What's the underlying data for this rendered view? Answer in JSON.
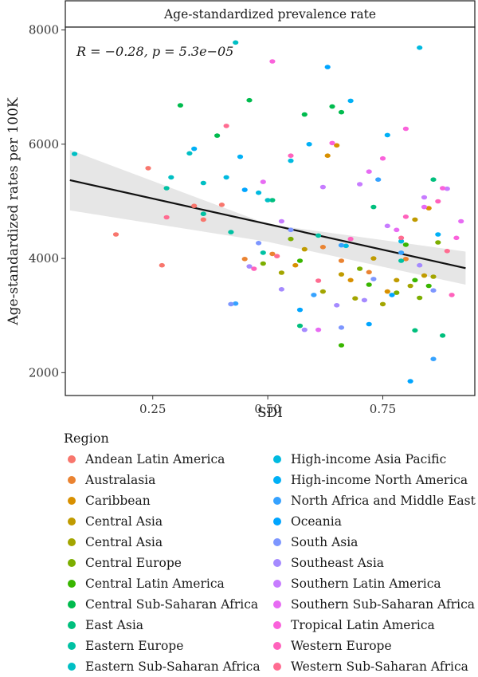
{
  "chart_data": {
    "type": "scatter",
    "strip_title": "Age-standardized prevalence rate",
    "annotation": "R = −0.28, p = 5.3e−05",
    "xlabel": "SDI",
    "ylabel": "Age-standardized rates per 100K",
    "xlim": [
      0.06,
      0.95
    ],
    "ylim": [
      1600,
      8050
    ],
    "xticks": [
      0.25,
      0.5,
      0.75
    ],
    "xtick_labels": [
      "0.25",
      "0.50",
      "0.75"
    ],
    "yticks": [
      2000,
      4000,
      6000,
      8000
    ],
    "ytick_labels": [
      "2000",
      "4000",
      "6000",
      "8000"
    ],
    "grid": false,
    "fit_line": {
      "x": [
        0.07,
        0.93
      ],
      "y": [
        5370,
        3830
      ]
    },
    "confidence_band": {
      "x": [
        0.07,
        0.5,
        0.93
      ],
      "upper": [
        5900,
        4600,
        4120
      ],
      "lower": [
        4840,
        4290,
        3540
      ]
    },
    "legend": {
      "title": "Region",
      "placement": "bottom"
    },
    "series": [
      {
        "name": "Andean Latin America",
        "color": "#F8766D",
        "points": [
          [
            0.17,
            4420
          ],
          [
            0.24,
            5580
          ],
          [
            0.27,
            3880
          ],
          [
            0.34,
            4920
          ],
          [
            0.36,
            4680
          ],
          [
            0.4,
            4940
          ]
        ]
      },
      {
        "name": "Australasia",
        "color": "#EA8331",
        "points": [
          [
            0.45,
            3990
          ],
          [
            0.51,
            4080
          ],
          [
            0.62,
            4200
          ],
          [
            0.66,
            3960
          ],
          [
            0.72,
            3760
          ],
          [
            0.8,
            3990
          ]
        ]
      },
      {
        "name": "Caribbean",
        "color": "#D89000",
        "points": [
          [
            0.56,
            3880
          ],
          [
            0.63,
            5800
          ],
          [
            0.65,
            5980
          ],
          [
            0.68,
            3620
          ],
          [
            0.76,
            3420
          ],
          [
            0.85,
            4880
          ]
        ]
      },
      {
        "name": "Central Asia",
        "color": "#C09B00",
        "points": [
          [
            0.58,
            4160
          ],
          [
            0.66,
            3720
          ],
          [
            0.73,
            4000
          ],
          [
            0.78,
            3620
          ],
          [
            0.82,
            4680
          ],
          [
            0.84,
            3700
          ]
        ]
      },
      {
        "name": "Central Asia",
        "color": "#A3A500",
        "points": [
          [
            0.53,
            3750
          ],
          [
            0.62,
            3420
          ],
          [
            0.69,
            3300
          ],
          [
            0.75,
            3200
          ],
          [
            0.81,
            3520
          ],
          [
            0.86,
            3680
          ]
        ]
      },
      {
        "name": "Central Europe",
        "color": "#7CAE00",
        "points": [
          [
            0.49,
            3910
          ],
          [
            0.55,
            4340
          ],
          [
            0.7,
            3820
          ],
          [
            0.78,
            3400
          ],
          [
            0.83,
            3310
          ],
          [
            0.87,
            4280
          ]
        ]
      },
      {
        "name": "Central Latin America",
        "color": "#39B600",
        "points": [
          [
            0.57,
            3960
          ],
          [
            0.66,
            2480
          ],
          [
            0.72,
            3540
          ],
          [
            0.8,
            4240
          ],
          [
            0.82,
            3620
          ],
          [
            0.85,
            3520
          ]
        ]
      },
      {
        "name": "Central Sub-Saharan Africa",
        "color": "#00BB4E",
        "points": [
          [
            0.31,
            6680
          ],
          [
            0.39,
            6150
          ],
          [
            0.46,
            6770
          ],
          [
            0.58,
            6520
          ],
          [
            0.64,
            6660
          ],
          [
            0.66,
            6560
          ]
        ]
      },
      {
        "name": "East Asia",
        "color": "#00BF7D",
        "points": [
          [
            0.51,
            5020
          ],
          [
            0.57,
            2820
          ],
          [
            0.73,
            4900
          ],
          [
            0.82,
            2740
          ],
          [
            0.86,
            5380
          ],
          [
            0.88,
            2650
          ]
        ]
      },
      {
        "name": "Eastern Europe",
        "color": "#00C1A3",
        "points": [
          [
            0.28,
            5230
          ],
          [
            0.36,
            4780
          ],
          [
            0.42,
            4460
          ],
          [
            0.49,
            4100
          ],
          [
            0.61,
            4400
          ],
          [
            0.79,
            3960
          ]
        ]
      },
      {
        "name": "Eastern Sub-Saharan Africa",
        "color": "#00BFC4",
        "points": [
          [
            0.08,
            5830
          ],
          [
            0.29,
            5420
          ],
          [
            0.33,
            5840
          ],
          [
            0.36,
            5320
          ],
          [
            0.43,
            7780
          ],
          [
            0.5,
            5020
          ]
        ]
      },
      {
        "name": "High-income Asia Pacific",
        "color": "#00BAE0",
        "points": [
          [
            0.41,
            5420
          ],
          [
            0.48,
            5150
          ],
          [
            0.55,
            5710
          ],
          [
            0.67,
            4220
          ],
          [
            0.79,
            4300
          ],
          [
            0.83,
            7690
          ]
        ]
      },
      {
        "name": "High-income North America",
        "color": "#00B0F6",
        "points": [
          [
            0.34,
            5920
          ],
          [
            0.44,
            5780
          ],
          [
            0.59,
            6000
          ],
          [
            0.68,
            6760
          ],
          [
            0.76,
            6160
          ],
          [
            0.87,
            4420
          ]
        ]
      },
      {
        "name": "North Africa and Middle East",
        "color": "#35A2FF",
        "points": [
          [
            0.43,
            3210
          ],
          [
            0.6,
            3360
          ],
          [
            0.66,
            4230
          ],
          [
            0.74,
            5380
          ],
          [
            0.79,
            4100
          ],
          [
            0.86,
            2240
          ]
        ]
      },
      {
        "name": "Oceania",
        "color": "#00A5FF",
        "points": [
          [
            0.45,
            5200
          ],
          [
            0.57,
            3100
          ],
          [
            0.63,
            7350
          ],
          [
            0.72,
            2850
          ],
          [
            0.77,
            3360
          ],
          [
            0.81,
            1850
          ]
        ]
      },
      {
        "name": "South Asia",
        "color": "#7D96FF",
        "points": [
          [
            0.42,
            3200
          ],
          [
            0.48,
            4270
          ],
          [
            0.55,
            4500
          ],
          [
            0.66,
            2790
          ],
          [
            0.73,
            3640
          ],
          [
            0.86,
            3440
          ]
        ]
      },
      {
        "name": "Southeast Asia",
        "color": "#A58AFF",
        "points": [
          [
            0.46,
            3860
          ],
          [
            0.53,
            3460
          ],
          [
            0.58,
            2750
          ],
          [
            0.65,
            3180
          ],
          [
            0.71,
            3270
          ],
          [
            0.83,
            3880
          ]
        ]
      },
      {
        "name": "Southern Latin America",
        "color": "#C77CFF",
        "points": [
          [
            0.53,
            4650
          ],
          [
            0.62,
            5250
          ],
          [
            0.7,
            5300
          ],
          [
            0.76,
            4570
          ],
          [
            0.84,
            5070
          ],
          [
            0.89,
            5220
          ]
        ]
      },
      {
        "name": "Southern Sub-Saharan Africa",
        "color": "#E76BF3",
        "points": [
          [
            0.49,
            5340
          ],
          [
            0.61,
            2750
          ],
          [
            0.72,
            5520
          ],
          [
            0.78,
            4500
          ],
          [
            0.84,
            4900
          ],
          [
            0.92,
            4650
          ]
        ]
      },
      {
        "name": "Tropical Latin America",
        "color": "#FA62DB",
        "points": [
          [
            0.51,
            7450
          ],
          [
            0.64,
            6020
          ],
          [
            0.75,
            5750
          ],
          [
            0.8,
            6270
          ],
          [
            0.88,
            5230
          ],
          [
            0.91,
            4360
          ]
        ]
      },
      {
        "name": "Western Europe",
        "color": "#FF62BC",
        "points": [
          [
            0.47,
            3820
          ],
          [
            0.55,
            5800
          ],
          [
            0.68,
            4340
          ],
          [
            0.8,
            4730
          ],
          [
            0.87,
            5000
          ],
          [
            0.9,
            3360
          ]
        ]
      },
      {
        "name": "Western Sub-Saharan Africa",
        "color": "#FF6C91",
        "points": [
          [
            0.28,
            4720
          ],
          [
            0.41,
            6320
          ],
          [
            0.52,
            4040
          ],
          [
            0.61,
            3610
          ],
          [
            0.79,
            4360
          ],
          [
            0.89,
            4130
          ]
        ]
      }
    ]
  }
}
